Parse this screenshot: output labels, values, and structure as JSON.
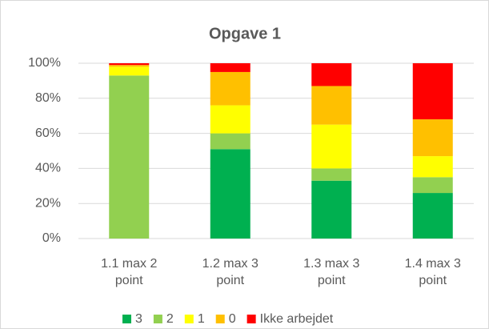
{
  "chart_data": {
    "type": "stacked_bar_100",
    "title": "Opgave 1",
    "categories": [
      "1.1 max 2 point",
      "1.2 max 3 point",
      "1.3 max 3 point",
      "1.4 max 3 point"
    ],
    "series": [
      {
        "name": "3",
        "color": "#00b050",
        "values": [
          0,
          51,
          33,
          26
        ]
      },
      {
        "name": "2",
        "color": "#92d050",
        "values": [
          93,
          9,
          7,
          9
        ]
      },
      {
        "name": "1",
        "color": "#ffff00",
        "values": [
          5,
          16,
          25,
          12
        ]
      },
      {
        "name": "0",
        "color": "#ffc000",
        "values": [
          1,
          19,
          22,
          21
        ]
      },
      {
        "name": "Ikke arbejdet",
        "color": "#ff0000",
        "values": [
          1,
          5,
          13,
          32
        ]
      }
    ],
    "ylim": [
      0,
      100
    ],
    "yticks": [
      {
        "value": 0,
        "label": "0%"
      },
      {
        "value": 20,
        "label": "20%"
      },
      {
        "value": 40,
        "label": "40%"
      },
      {
        "value": 60,
        "label": "60%"
      },
      {
        "value": 80,
        "label": "80%"
      },
      {
        "value": 100,
        "label": "100%"
      }
    ],
    "grid": true,
    "legend": "bottom"
  }
}
